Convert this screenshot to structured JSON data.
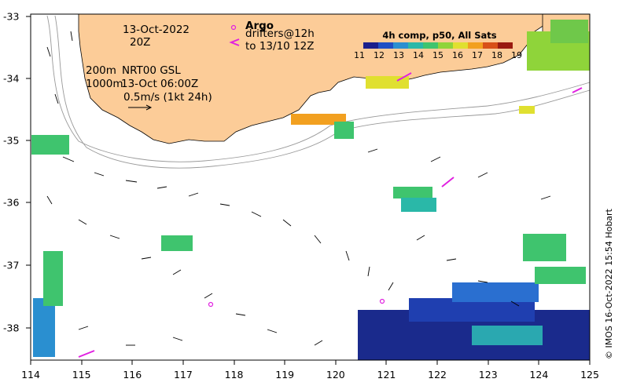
{
  "annotations": {
    "date": "13-Oct-2022",
    "time": "20Z",
    "argo_label": "Argo",
    "drifters_label": "drifters@12h",
    "drifters_to": "to 13/10 12Z",
    "contour_200": "200m",
    "contour_1000": "1000m",
    "model": "NRT00 GSL",
    "model_time": "13-Oct 06:00Z",
    "scale_label": "0.5m/s (1kt 24h)",
    "credit": "© IMOS 16-Oct-2022 15:54 Hobart"
  },
  "colorbar": {
    "title": "4h comp, p50, All Sats",
    "labels": [
      "11",
      "12",
      "13",
      "14",
      "15",
      "16",
      "17",
      "18",
      "19"
    ],
    "colors": [
      "#1a1f8c",
      "#1f4fc4",
      "#2a8fd0",
      "#2ab8a8",
      "#3fc46e",
      "#8fd43a",
      "#e0e030",
      "#f2a020",
      "#d85018",
      "#9a1a10"
    ]
  },
  "axes": {
    "x_ticks": [
      "114",
      "115",
      "116",
      "117",
      "118",
      "119",
      "120",
      "121",
      "122",
      "123",
      "124",
      "125"
    ],
    "y_ticks": [
      "-33",
      "-34",
      "-35",
      "-36",
      "-37",
      "-38"
    ]
  },
  "colors": {
    "land": "#fccc98",
    "argo": "#e020e0",
    "drifter": "#e020e0"
  }
}
